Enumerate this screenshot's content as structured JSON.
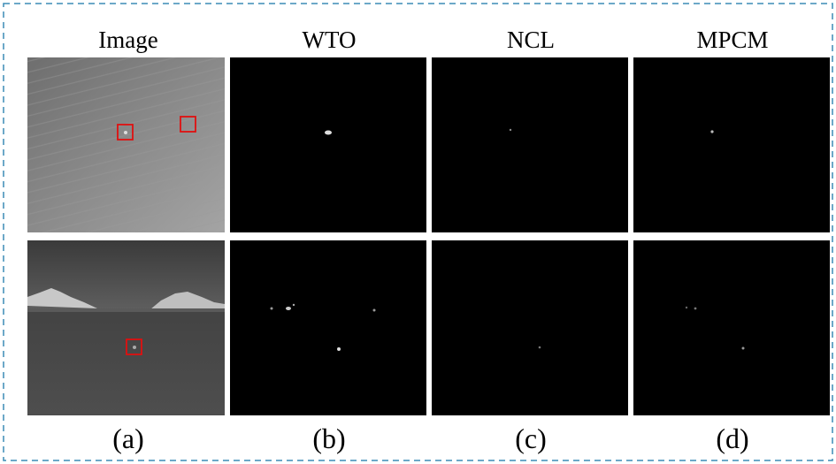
{
  "headers": [
    "Image",
    "WTO",
    "NCL",
    "MPCM"
  ],
  "labels": [
    "(a)",
    "(b)",
    "(c)",
    "(d)"
  ]
}
